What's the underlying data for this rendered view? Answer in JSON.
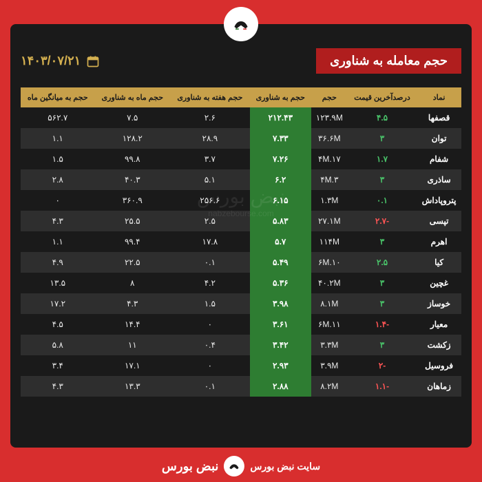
{
  "title": "حجم معامله به شناوری",
  "date": "۱۴۰۳/۰۷/۲۱",
  "watermark_line1": "نبض بورس",
  "watermark_line2": "nabzebourse.com",
  "footer_text": "سایت نبض بورس",
  "footer_brand": "نبض بورس",
  "columns": [
    "نماد",
    "درصدآخرین قیمت",
    "حجم",
    "حجم به شناوری",
    "حجم هفته به شناوری",
    "حجم ماه به شناوری",
    "حجم به میانگین ماه"
  ],
  "rows": [
    {
      "symbol": "قصفها",
      "pct": "۴.۵",
      "pct_neg": false,
      "vol": "١٢٣.٩M",
      "ratio": "۲۱۲.۴۳",
      "week": "۲.۶",
      "month": "۷.۵",
      "avg": "۵۶۲.۷"
    },
    {
      "symbol": "توان",
      "pct": "۳",
      "pct_neg": false,
      "vol": "٣۶.۶M",
      "ratio": "۷.۳۳",
      "week": "۲۸.۹",
      "month": "۱۲۸.۲",
      "avg": "۱.۱"
    },
    {
      "symbol": "شفام",
      "pct": "۱.۷",
      "pct_neg": false,
      "vol": "١٧.۴M",
      "ratio": "۷.۲۶",
      "week": "۳.۷",
      "month": "۹۹.۸",
      "avg": "۱.۵"
    },
    {
      "symbol": "ساذری",
      "pct": "۳",
      "pct_neg": false,
      "vol": "٣.۴M",
      "ratio": "۶.۲",
      "week": "۵.۱",
      "month": "۴۰.۳",
      "avg": "۲.۸"
    },
    {
      "symbol": "پتروپاداش",
      "pct": "۰.۱",
      "pct_neg": false,
      "vol": "١.٣M",
      "ratio": "۶.۱۵",
      "week": "۲۵۶.۶",
      "month": "۳۶۰.۹",
      "avg": "۰"
    },
    {
      "symbol": "تپسی",
      "pct": "-۲.۷",
      "pct_neg": true,
      "vol": "٢٧.١M",
      "ratio": "۵.۸۳",
      "week": "۲.۵",
      "month": "۲۵.۵",
      "avg": "۴.۳"
    },
    {
      "symbol": "اهرم",
      "pct": "۳",
      "pct_neg": false,
      "vol": "١١۴M",
      "ratio": "۵.۷",
      "week": "۱۷.۸",
      "month": "۹۹.۴",
      "avg": "۱.۱"
    },
    {
      "symbol": "کیا",
      "pct": "۲.۵",
      "pct_neg": false,
      "vol": "١٠.۶M",
      "ratio": "۵.۴۹",
      "week": "۰.۱",
      "month": "۲۲.۵",
      "avg": "۴.۹"
    },
    {
      "symbol": "غچین",
      "pct": "۳",
      "pct_neg": false,
      "vol": "۴٠.٢M",
      "ratio": "۵.۳۶",
      "week": "۴.۲",
      "month": "۸",
      "avg": "۱۳.۵"
    },
    {
      "symbol": "خوساز",
      "pct": "۳",
      "pct_neg": false,
      "vol": "٨.١M",
      "ratio": "۳.۹۸",
      "week": "۱.۵",
      "month": "۴.۳",
      "avg": "۱۷.۲"
    },
    {
      "symbol": "معیار",
      "pct": "-۱.۴",
      "pct_neg": true,
      "vol": "١١.۶M",
      "ratio": "۳.۶۱",
      "week": "۰",
      "month": "۱۴.۴",
      "avg": "۴.۵"
    },
    {
      "symbol": "زکشت",
      "pct": "۳",
      "pct_neg": false,
      "vol": "٣.٣M",
      "ratio": "۳.۴۲",
      "week": "۰.۴",
      "month": "۱۱",
      "avg": "۵.۸"
    },
    {
      "symbol": "فروسیل",
      "pct": "-۲",
      "pct_neg": true,
      "vol": "٣.٩M",
      "ratio": "۲.۹۳",
      "week": "۰",
      "month": "۱۷.۱",
      "avg": "۳.۴"
    },
    {
      "symbol": "زماهان",
      "pct": "-۱.۱",
      "pct_neg": true,
      "vol": "٨.٢M",
      "ratio": "۲.۸۸",
      "week": "۰.۱",
      "month": "۱۳.۳",
      "avg": "۴.۳"
    }
  ]
}
